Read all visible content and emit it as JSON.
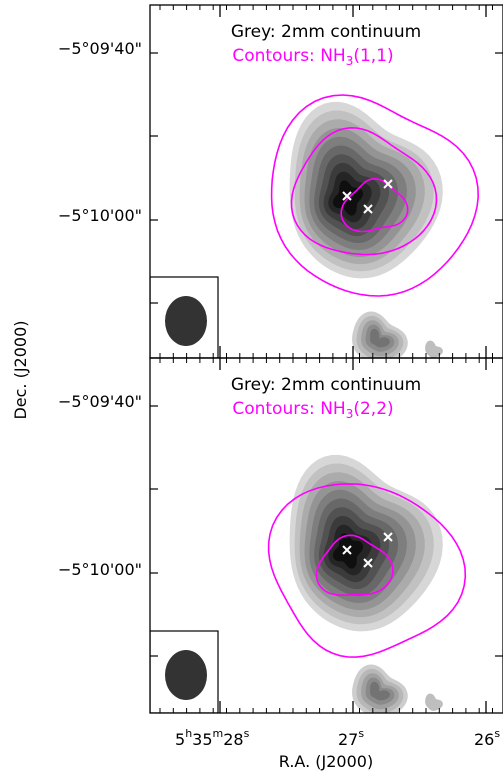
{
  "chart_data": [
    {
      "type": "contour",
      "greyscale_label": "Grey: 2mm continuum",
      "contour_label_main": "Contours: NH",
      "contour_label_sub": "3",
      "contour_label_tail": "(1,1)",
      "ylabel": "Dec. (J2000)",
      "y_tick_labels": [
        "−5°09'40\"",
        "−5°10'00\""
      ],
      "contour_color": "#ff00ff",
      "grey_levels": 10,
      "contour_levels": 3,
      "markers": 3,
      "beam": "filled ellipse, lower-left"
    },
    {
      "type": "contour",
      "greyscale_label": "Grey: 2mm continuum",
      "contour_label_main": "Contours: NH",
      "contour_label_sub": "3",
      "contour_label_tail": "(2,2)",
      "xlabel": "R.A. (J2000)",
      "x_tick_labels": [
        {
          "main": "5",
          "h": "h",
          "mid": "35",
          "m": "m",
          "tail": "28",
          "s": "s"
        },
        {
          "main": "27",
          "s": "s"
        },
        {
          "main": "26",
          "s": "s"
        }
      ],
      "y_tick_labels": [
        "−5°09'40\"",
        "−5°10'00\""
      ],
      "contour_color": "#ff00ff",
      "grey_levels": 10,
      "contour_levels": 2,
      "markers": 3,
      "beam": "filled ellipse, lower-left"
    }
  ]
}
